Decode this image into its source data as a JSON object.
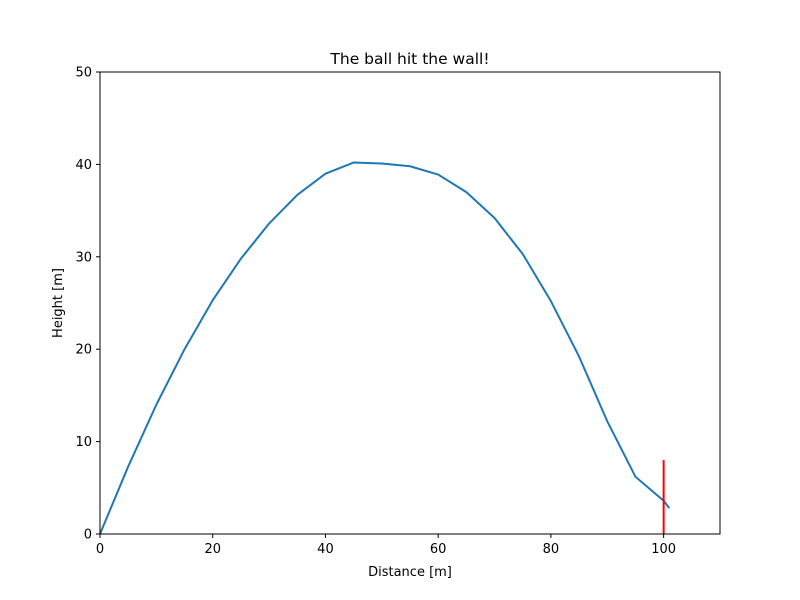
{
  "chart_data": {
    "type": "line",
    "title": "The ball hit the wall!",
    "xlabel": "Distance [m]",
    "ylabel": "Height [m]",
    "xlim": [
      0,
      110
    ],
    "ylim": [
      0,
      50
    ],
    "xticks": [
      0,
      20,
      40,
      60,
      80,
      100
    ],
    "yticks": [
      0,
      10,
      20,
      30,
      40,
      50
    ],
    "grid": false,
    "colors": {
      "trajectory": "#1f77b4",
      "wall": "#ff0000"
    },
    "series": [
      {
        "type": "line",
        "x": [
          0,
          5,
          10,
          15,
          20,
          25,
          30,
          35,
          40,
          45,
          50,
          51.6,
          55,
          60,
          65,
          70,
          75,
          80,
          85,
          90,
          95,
          100,
          101
        ],
        "y": [
          0,
          7.3,
          14.0,
          20.0,
          25.3,
          29.8,
          33.6,
          36.7,
          39.0,
          40.2,
          40.1,
          40.0,
          39.8,
          38.9,
          37.0,
          34.2,
          30.3,
          25.2,
          19.2,
          12.2,
          6.2,
          3.6,
          2.8
        ]
      },
      {
        "type": "wall",
        "x": [
          100,
          100
        ],
        "y": [
          0,
          8
        ]
      }
    ]
  }
}
